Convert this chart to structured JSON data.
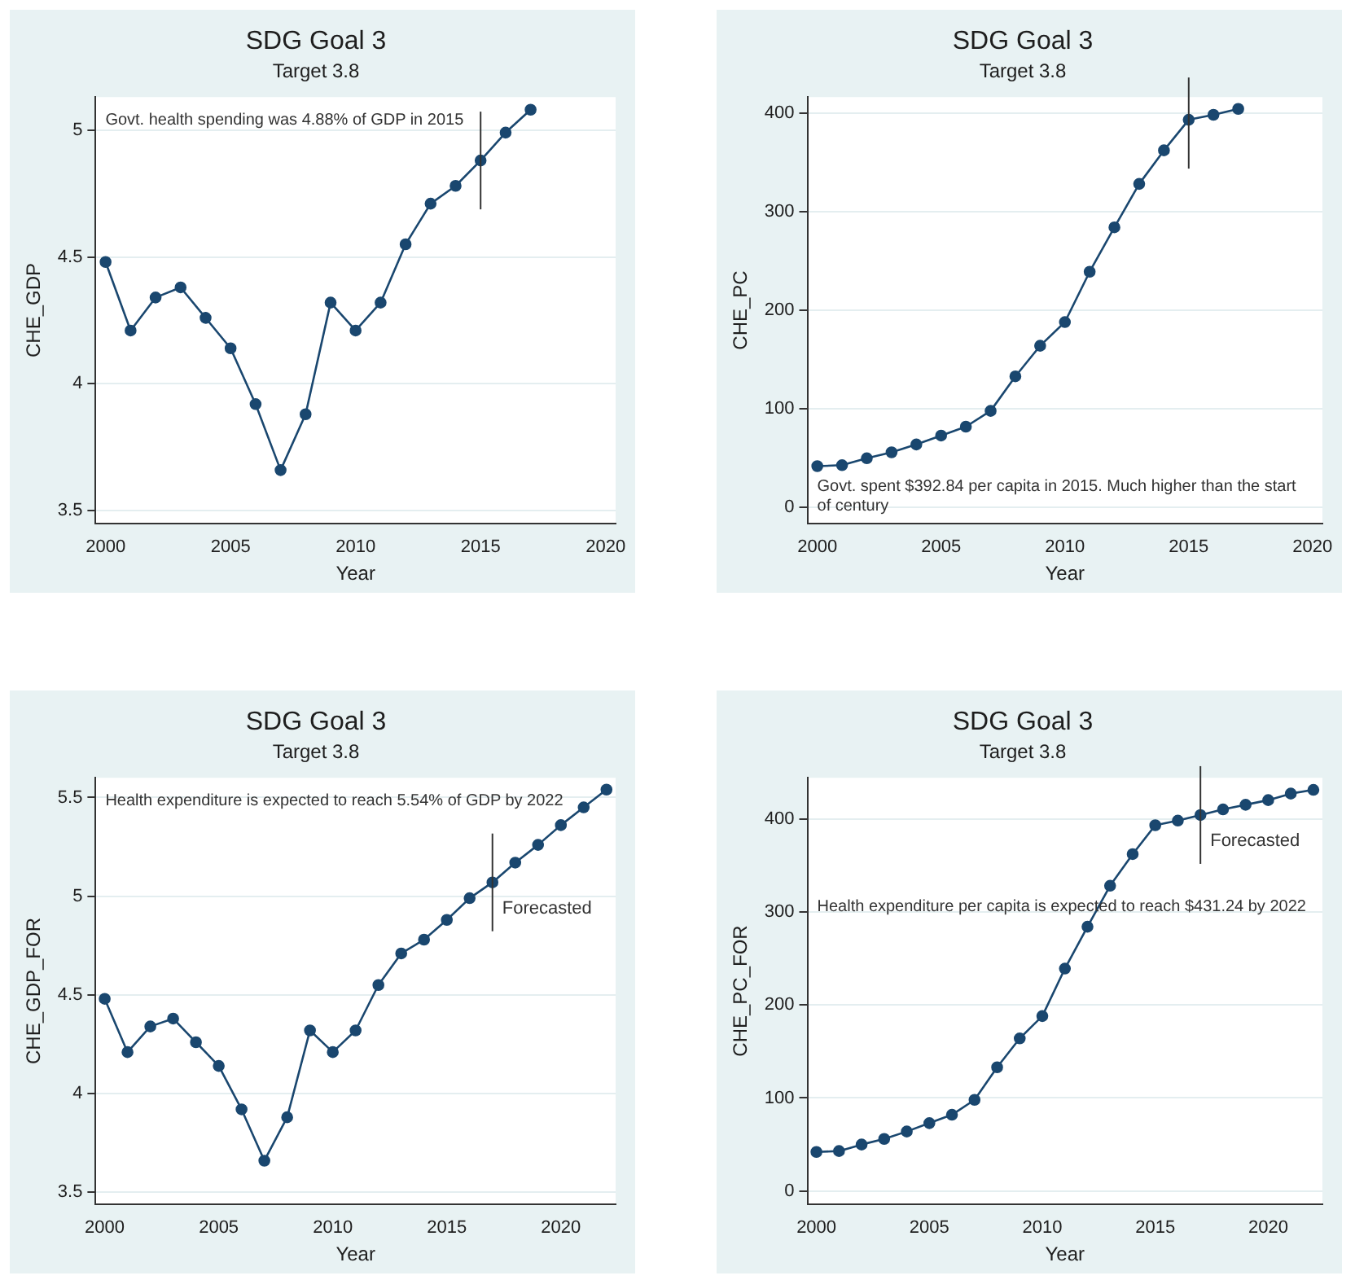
{
  "chart_data": [
    {
      "type": "line",
      "title": "SDG Goal 3",
      "subtitle": "Target 3.8",
      "xlabel": "Year",
      "ylabel": "CHE_GDP",
      "x": [
        2000,
        2001,
        2002,
        2003,
        2004,
        2005,
        2006,
        2007,
        2008,
        2009,
        2010,
        2011,
        2012,
        2013,
        2014,
        2015,
        2016,
        2017
      ],
      "series": [
        {
          "color": "#1a476f",
          "values": [
            4.48,
            4.21,
            4.34,
            4.38,
            4.26,
            4.14,
            3.92,
            3.66,
            3.88,
            4.32,
            4.21,
            4.32,
            4.55,
            4.71,
            4.78,
            4.88,
            4.99,
            5.08
          ]
        }
      ],
      "xlim": [
        1999.6,
        2020.4
      ],
      "ylim": [
        3.45,
        5.13
      ],
      "xticks": [
        2000,
        2005,
        2010,
        2015,
        2020
      ],
      "yticks": [
        3.5,
        4,
        4.5,
        5
      ],
      "grid": "y",
      "legend": false,
      "marker": "circle",
      "line_style": "solid",
      "ref_lines": [
        {
          "axis": "x",
          "value": 2015,
          "label": null
        }
      ],
      "annotations": [
        "Govt. health spending was 4.88% of GDP in 2015"
      ]
    },
    {
      "type": "line",
      "title": "SDG Goal 3",
      "subtitle": "Target 3.8",
      "xlabel": "Year",
      "ylabel": "CHE_PC",
      "x": [
        2000,
        2001,
        2002,
        2003,
        2004,
        2005,
        2006,
        2007,
        2008,
        2009,
        2010,
        2011,
        2012,
        2013,
        2014,
        2015,
        2016,
        2017
      ],
      "series": [
        {
          "color": "#1a476f",
          "values": [
            42,
            43,
            50,
            56,
            64,
            73,
            82,
            98,
            133,
            164,
            188,
            239,
            284,
            328,
            362,
            393,
            398,
            404
          ]
        }
      ],
      "xlim": [
        1999.6,
        2020.4
      ],
      "ylim": [
        -16,
        416
      ],
      "xticks": [
        2000,
        2005,
        2010,
        2015,
        2020
      ],
      "yticks": [
        0,
        100,
        200,
        300,
        400
      ],
      "grid": "y",
      "legend": false,
      "marker": "circle",
      "line_style": "solid",
      "ref_lines": [
        {
          "axis": "x",
          "value": 2015,
          "label": null
        }
      ],
      "annotations": [
        "Govt. spent $392.84 per capita in 2015. Much higher than the start of century"
      ]
    },
    {
      "type": "line",
      "title": "SDG Goal 3",
      "subtitle": "Target 3.8",
      "xlabel": "Year",
      "ylabel": "CHE_GDP_FOR",
      "x": [
        2000,
        2001,
        2002,
        2003,
        2004,
        2005,
        2006,
        2007,
        2008,
        2009,
        2010,
        2011,
        2012,
        2013,
        2014,
        2015,
        2016,
        2017,
        2018,
        2019,
        2020,
        2021,
        2022
      ],
      "series": [
        {
          "color": "#1a476f",
          "values": [
            4.48,
            4.21,
            4.34,
            4.38,
            4.26,
            4.14,
            3.92,
            3.66,
            3.88,
            4.32,
            4.21,
            4.32,
            4.55,
            4.71,
            4.78,
            4.88,
            4.99,
            5.07,
            5.17,
            5.26,
            5.36,
            5.45,
            5.54
          ]
        }
      ],
      "xlim": [
        1999.6,
        2022.4
      ],
      "ylim": [
        3.44,
        5.6
      ],
      "xticks": [
        2000,
        2005,
        2010,
        2015,
        2020
      ],
      "yticks": [
        3.5,
        4,
        4.5,
        5,
        5.5
      ],
      "grid": "y",
      "legend": false,
      "marker": "circle",
      "line_style": "solid",
      "ref_lines": [
        {
          "axis": "x",
          "value": 2017,
          "label": "Forecasted"
        }
      ],
      "annotations": [
        "Health expenditure is expected to reach 5.54% of GDP by 2022"
      ]
    },
    {
      "type": "line",
      "title": "SDG Goal 3",
      "subtitle": "Target 3.8",
      "xlabel": "Year",
      "ylabel": "CHE_PC_FOR",
      "x": [
        2000,
        2001,
        2002,
        2003,
        2004,
        2005,
        2006,
        2007,
        2008,
        2009,
        2010,
        2011,
        2012,
        2013,
        2014,
        2015,
        2016,
        2017,
        2018,
        2019,
        2020,
        2021,
        2022
      ],
      "series": [
        {
          "color": "#1a476f",
          "values": [
            42,
            43,
            50,
            56,
            64,
            73,
            82,
            98,
            133,
            164,
            188,
            239,
            284,
            328,
            362,
            393,
            398,
            404,
            410,
            415,
            420,
            427,
            431
          ]
        }
      ],
      "xlim": [
        1999.6,
        2022.4
      ],
      "ylim": [
        -14,
        444
      ],
      "xticks": [
        2000,
        2005,
        2010,
        2015,
        2020
      ],
      "yticks": [
        0,
        100,
        200,
        300,
        400
      ],
      "grid": "y",
      "legend": false,
      "marker": "circle",
      "line_style": "solid",
      "ref_lines": [
        {
          "axis": "x",
          "value": 2017,
          "label": "Forecasted"
        }
      ],
      "annotations": [
        "Health expenditure per capita is expected to reach $431.24 by 2022"
      ]
    }
  ]
}
